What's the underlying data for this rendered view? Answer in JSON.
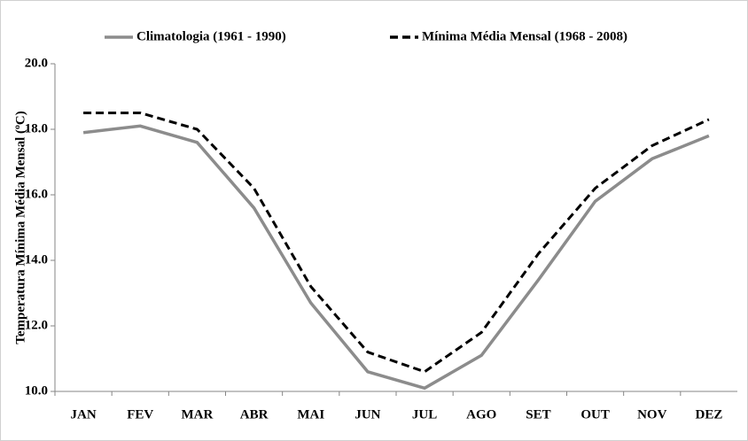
{
  "chart_data": {
    "type": "line",
    "y_label": "Temperatura Mínima Média Mensal (ºC)",
    "categories": [
      "JAN",
      "FEV",
      "MAR",
      "ABR",
      "MAI",
      "JUN",
      "JUL",
      "AGO",
      "SET",
      "OUT",
      "NOV",
      "DEZ"
    ],
    "series": [
      {
        "name": "Climatologia (1961 - 1990)",
        "color": "#8c8c8c",
        "line_style": "solid",
        "values": [
          17.9,
          18.1,
          17.6,
          15.6,
          12.7,
          10.6,
          10.1,
          11.1,
          13.4,
          15.8,
          17.1,
          17.8
        ]
      },
      {
        "name": "Mínima Média Mensal (1968 - 2008)",
        "color": "#000000",
        "line_style": "dashed",
        "values": [
          18.5,
          18.5,
          18.0,
          16.2,
          13.2,
          11.2,
          10.6,
          11.8,
          14.2,
          16.2,
          17.5,
          18.3
        ]
      }
    ],
    "ylim": [
      10,
      20
    ],
    "yticks": [
      {
        "value": 10,
        "label": "10.0"
      },
      {
        "value": 12,
        "label": "12.0"
      },
      {
        "value": 14,
        "label": "14.0"
      },
      {
        "value": 16,
        "label": "16.0"
      },
      {
        "value": 18,
        "label": "18.0"
      },
      {
        "value": 20,
        "label": "20.0"
      }
    ],
    "grid": false,
    "legend": "top"
  }
}
